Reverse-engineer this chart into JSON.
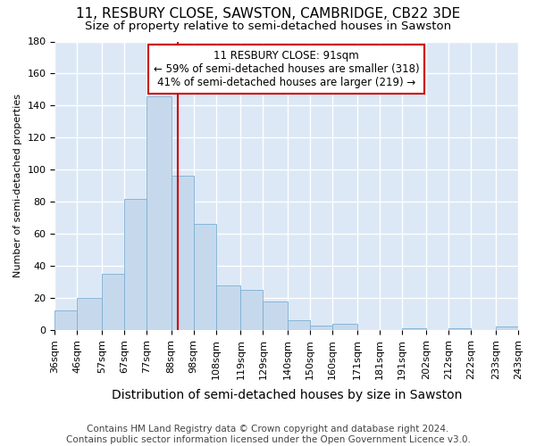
{
  "title": "11, RESBURY CLOSE, SAWSTON, CAMBRIDGE, CB22 3DE",
  "subtitle": "Size of property relative to semi-detached houses in Sawston",
  "xlabel": "Distribution of semi-detached houses by size in Sawston",
  "ylabel": "Number of semi-detached properties",
  "footer1": "Contains HM Land Registry data © Crown copyright and database right 2024.",
  "footer2": "Contains public sector information licensed under the Open Government Licence v3.0.",
  "annotation_line1": "11 RESBURY CLOSE: 91sqm",
  "annotation_line2": "← 59% of semi-detached houses are smaller (318)",
  "annotation_line3": "41% of semi-detached houses are larger (219) →",
  "property_size": 91,
  "bin_edges": [
    36,
    46,
    57,
    67,
    77,
    88,
    98,
    108,
    119,
    129,
    140,
    150,
    160,
    171,
    181,
    191,
    202,
    212,
    222,
    233,
    243
  ],
  "bin_labels": [
    "36sqm",
    "46sqm",
    "57sqm",
    "67sqm",
    "77sqm",
    "88sqm",
    "98sqm",
    "108sqm",
    "119sqm",
    "129sqm",
    "140sqm",
    "150sqm",
    "160sqm",
    "171sqm",
    "181sqm",
    "191sqm",
    "202sqm",
    "212sqm",
    "222sqm",
    "233sqm",
    "243sqm"
  ],
  "counts": [
    12,
    20,
    35,
    82,
    146,
    96,
    66,
    28,
    25,
    18,
    6,
    3,
    4,
    0,
    0,
    1,
    0,
    1,
    0,
    2
  ],
  "bar_color": "#c6d9ec",
  "bar_edge_color": "#7bafd4",
  "vline_color": "#cc0000",
  "vline_x": 91,
  "box_color": "#cc0000",
  "ylim": [
    0,
    180
  ],
  "yticks": [
    0,
    20,
    40,
    60,
    80,
    100,
    120,
    140,
    160,
    180
  ],
  "background_color": "#dce8f5",
  "grid_color": "#ffffff",
  "fig_background": "#ffffff",
  "title_fontsize": 11,
  "subtitle_fontsize": 9.5,
  "xlabel_fontsize": 10,
  "ylabel_fontsize": 8,
  "tick_fontsize": 8,
  "annotation_fontsize": 8.5,
  "footer_fontsize": 7.5
}
